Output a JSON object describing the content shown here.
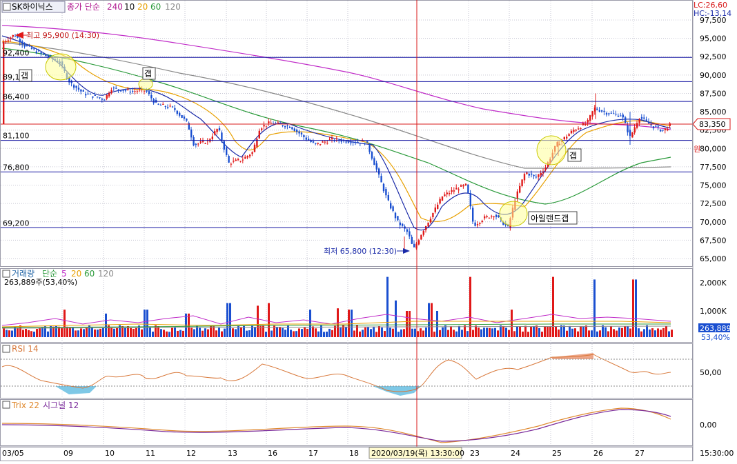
{
  "stock": {
    "name": "SK하이닉스"
  },
  "price_legend": {
    "type": "종가 단순",
    "periods": [
      {
        "label": "240",
        "color": "#c02cc8"
      },
      {
        "label": "10",
        "color": "#111111"
      },
      {
        "label": "20",
        "color": "#e8a000"
      },
      {
        "label": "60",
        "color": "#2a9a3a"
      },
      {
        "label": "120",
        "color": "#888888"
      }
    ]
  },
  "top_right": {
    "lc": "LC:26,60",
    "hc": "HC:-13,14"
  },
  "price_axis": {
    "ticks": [
      "97,500",
      "95,000",
      "92,500",
      "90,000",
      "87,500",
      "85,000",
      "82,500",
      "80,000",
      "77,500",
      "75,000",
      "72,500",
      "70,000",
      "67,500",
      "65,000"
    ],
    "current_value": "83,350",
    "unit": "원"
  },
  "price_lines": [
    {
      "label": "92,400",
      "value": 92400
    },
    {
      "label": "89,100",
      "value": 89100
    },
    {
      "label": "86,400",
      "value": 86400
    },
    {
      "label": "81,100",
      "value": 81100
    },
    {
      "label": "76,800",
      "value": 76800
    },
    {
      "label": "69,200",
      "value": 69200
    }
  ],
  "annotations": {
    "high": "최고 95,900 (14:30)",
    "low": "최저 65,800 (12:30)",
    "gap1": "갭",
    "gap2": "갭",
    "gap3": "갭",
    "island": "아일랜드갭"
  },
  "volume": {
    "title": "거래량",
    "type": "단순",
    "periods": [
      {
        "label": "5",
        "color": "#c02cc8"
      },
      {
        "label": "20",
        "color": "#e8a000"
      },
      {
        "label": "60",
        "color": "#2a9a3a"
      },
      {
        "label": "120",
        "color": "#888888"
      }
    ],
    "summary": "263,889주(53,40%)",
    "ticks": [
      "2,000K",
      "1,000K"
    ],
    "current": "263,889",
    "current_pct": "53,40%"
  },
  "rsi": {
    "title": "RSI 14",
    "tick": "50,00"
  },
  "trix": {
    "title": "Trix 22",
    "signal": "시그널 12",
    "tick": "0,00"
  },
  "x_axis": {
    "labels": [
      "03/05",
      "09",
      "10",
      "11",
      "12",
      "13",
      "16",
      "17",
      "18",
      "23",
      "24",
      "25",
      "26",
      "27"
    ],
    "crosshair_label": "2020/03/19(목) 13:30:00",
    "right_label": "15:30:00"
  },
  "colors": {
    "up": "#e01818",
    "down": "#1a4fd0",
    "line": "#1010a0",
    "crosshair": "#d81818"
  }
}
